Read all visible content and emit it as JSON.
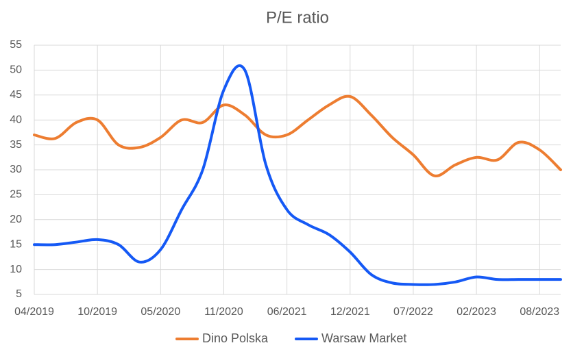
{
  "chart_data": {
    "type": "line",
    "title": "P/E ratio",
    "categories": [
      "04/2019",
      null,
      null,
      "10/2019",
      null,
      null,
      "05/2020",
      null,
      null,
      "11/2020",
      null,
      null,
      "06/2021",
      null,
      null,
      "12/2021",
      null,
      null,
      "07/2022",
      null,
      null,
      "02/2023",
      null,
      null,
      "08/2023",
      null
    ],
    "series": [
      {
        "name": "Dino Polska",
        "color": "#ed7d31",
        "values": [
          37,
          36.3,
          39.5,
          40,
          35,
          34.5,
          36.5,
          40,
          39.5,
          43,
          41,
          37,
          37,
          40,
          43,
          44.7,
          41,
          36.5,
          33,
          28.8,
          31,
          32.5,
          32,
          35.5,
          34,
          30
        ]
      },
      {
        "name": "Warsaw Market",
        "color": "#1559f5",
        "values": [
          15,
          15,
          15.5,
          16,
          15,
          11.5,
          14,
          22,
          30,
          46,
          50,
          31,
          22,
          19,
          17,
          13.5,
          9,
          7.3,
          7,
          7,
          7.5,
          8.5,
          8,
          8,
          8,
          8
        ]
      }
    ],
    "ylim": [
      5,
      55
    ],
    "yticks": [
      5,
      10,
      15,
      20,
      25,
      30,
      35,
      40,
      45,
      50,
      55
    ],
    "grid": true,
    "legend": "bottom"
  }
}
